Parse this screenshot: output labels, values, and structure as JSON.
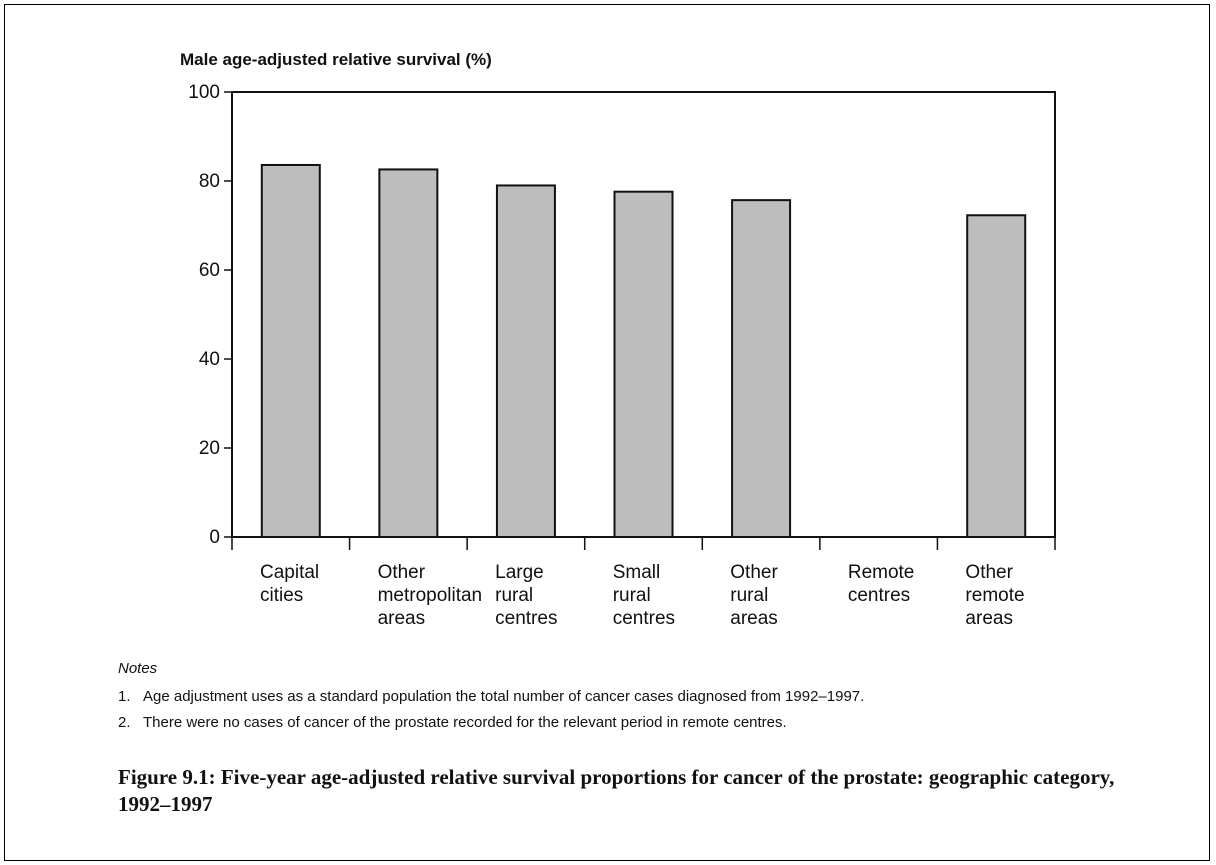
{
  "chart_data": {
    "type": "bar",
    "ylabel": "Male age-adjusted relative survival (%)",
    "ylim": [
      0,
      100
    ],
    "yticks": [
      0,
      20,
      40,
      60,
      80,
      100
    ],
    "categories": [
      [
        "Capital",
        "cities"
      ],
      [
        "Other",
        "metropolitan",
        "areas"
      ],
      [
        "Large",
        "rural",
        "centres"
      ],
      [
        "Small",
        "rural",
        "centres"
      ],
      [
        "Other",
        "rural",
        "areas"
      ],
      [
        "Remote",
        "centres"
      ],
      [
        "Other",
        "remote",
        "areas"
      ]
    ],
    "values": [
      83.6,
      82.6,
      79.0,
      77.6,
      75.7,
      null,
      72.3
    ],
    "bar_color": "#bdbdbd",
    "grid": false
  },
  "notes": {
    "header": "Notes",
    "items": [
      {
        "num": "1.",
        "text": "Age adjustment uses as a standard population the total number of cancer cases diagnosed from 1992–1997."
      },
      {
        "num": "2.",
        "text": "There were no cases of cancer of the prostate recorded for the relevant period in remote centres."
      }
    ]
  },
  "caption": "Figure 9.1: Five-year age-adjusted relative survival proportions for cancer of the prostate: geographic category, 1992–1997"
}
